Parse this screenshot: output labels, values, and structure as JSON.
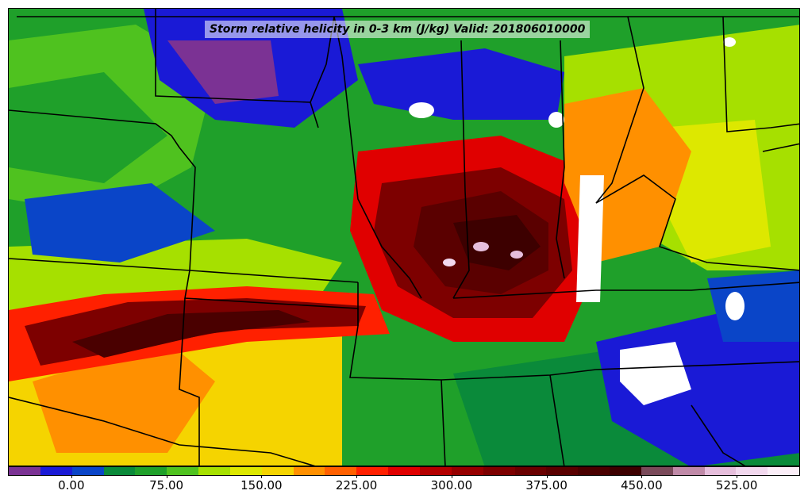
{
  "map": {
    "title": "Storm relative helicity in 0-3 km (J/kg) Valid: 201806010000",
    "units": "J/kg",
    "layer_height": "0-3 km",
    "valid_time": "201806010000"
  },
  "colorbar": {
    "min": -50,
    "max": 575,
    "step": 25,
    "colors": [
      "#7b3294",
      "#1a1ad6",
      "#0a45c8",
      "#0a8a3a",
      "#1fa02a",
      "#4fc21f",
      "#a6e000",
      "#dde800",
      "#f5d400",
      "#ff9000",
      "#ff6000",
      "#ff2000",
      "#e00000",
      "#b40000",
      "#960000",
      "#7d0000",
      "#6a0000",
      "#5a0000",
      "#4a0000",
      "#3d0000",
      "#7a4a5a",
      "#c08aa8",
      "#e6bedc",
      "#f2d8ee",
      "#fbeef8"
    ],
    "tick_labels": [
      "0.00",
      "75.00",
      "150.00",
      "225.00",
      "300.00",
      "375.00",
      "450.00",
      "525.00"
    ],
    "tick_values": [
      0,
      75,
      150,
      225,
      300,
      375,
      450,
      525
    ]
  },
  "palette": {
    "background": "#1fa02a",
    "border": "#000000"
  }
}
